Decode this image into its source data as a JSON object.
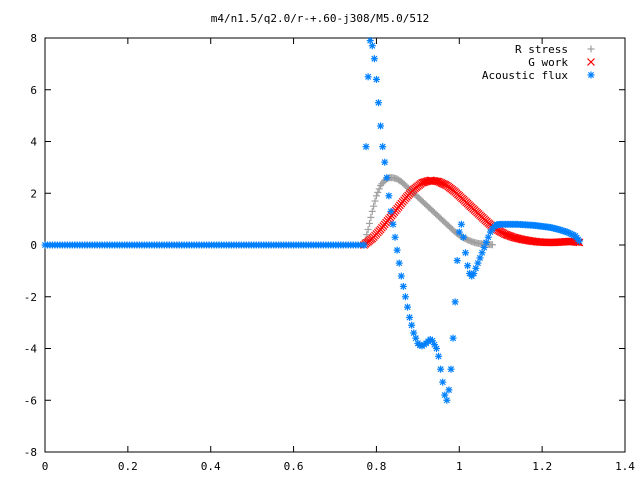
{
  "chart_data": {
    "type": "scatter",
    "title": "m4/n1.5/q2.0/r-+.60-j308/M5.0/512",
    "xlabel": "",
    "ylabel": "",
    "xlim": [
      0,
      1.4
    ],
    "ylim": [
      -8,
      8
    ],
    "x_ticks": [
      "0",
      "0.2",
      "0.4",
      "0.6",
      "0.8",
      "1",
      "1.2",
      "1.4"
    ],
    "y_ticks": [
      "-8",
      "-6",
      "-4",
      "-2",
      "0",
      "2",
      "4",
      "6",
      "8"
    ],
    "grid": false,
    "legend_position": "top-right",
    "series": [
      {
        "name": "R stress",
        "marker": "plus",
        "color": "#a0a0a0",
        "points": [
          [
            0.77,
            0.0
          ],
          [
            0.78,
            0.6
          ],
          [
            0.79,
            1.3
          ],
          [
            0.8,
            1.9
          ],
          [
            0.81,
            2.3
          ],
          [
            0.82,
            2.5
          ],
          [
            0.83,
            2.6
          ],
          [
            0.84,
            2.6
          ],
          [
            0.85,
            2.55
          ],
          [
            0.86,
            2.45
          ],
          [
            0.87,
            2.3
          ],
          [
            0.88,
            2.15
          ],
          [
            0.89,
            2.0
          ],
          [
            0.9,
            1.85
          ],
          [
            0.91,
            1.7
          ],
          [
            0.92,
            1.55
          ],
          [
            0.93,
            1.4
          ],
          [
            0.94,
            1.25
          ],
          [
            0.95,
            1.1
          ],
          [
            0.96,
            0.95
          ],
          [
            0.97,
            0.8
          ],
          [
            0.98,
            0.65
          ],
          [
            0.99,
            0.5
          ],
          [
            1.0,
            0.38
          ],
          [
            1.01,
            0.28
          ],
          [
            1.02,
            0.2
          ],
          [
            1.03,
            0.13
          ],
          [
            1.04,
            0.08
          ],
          [
            1.05,
            0.05
          ],
          [
            1.06,
            0.03
          ],
          [
            1.08,
            0.01
          ]
        ]
      },
      {
        "name": "G work",
        "marker": "cross",
        "color": "#ff0000",
        "points": [
          [
            0.77,
            0.0
          ],
          [
            0.79,
            0.25
          ],
          [
            0.81,
            0.6
          ],
          [
            0.83,
            1.0
          ],
          [
            0.85,
            1.4
          ],
          [
            0.87,
            1.8
          ],
          [
            0.89,
            2.15
          ],
          [
            0.91,
            2.4
          ],
          [
            0.93,
            2.5
          ],
          [
            0.95,
            2.45
          ],
          [
            0.97,
            2.3
          ],
          [
            0.99,
            2.05
          ],
          [
            1.01,
            1.75
          ],
          [
            1.03,
            1.45
          ],
          [
            1.05,
            1.15
          ],
          [
            1.07,
            0.85
          ],
          [
            1.09,
            0.6
          ],
          [
            1.11,
            0.42
          ],
          [
            1.13,
            0.3
          ],
          [
            1.15,
            0.22
          ],
          [
            1.17,
            0.16
          ],
          [
            1.19,
            0.12
          ],
          [
            1.21,
            0.1
          ],
          [
            1.23,
            0.1
          ],
          [
            1.25,
            0.12
          ],
          [
            1.27,
            0.14
          ],
          [
            1.29,
            0.1
          ]
        ]
      },
      {
        "name": "Acoustic flux",
        "marker": "star",
        "color": "#0080ff",
        "points": [
          [
            0.77,
            0.0
          ],
          [
            0.775,
            3.8
          ],
          [
            0.78,
            6.5
          ],
          [
            0.785,
            7.9
          ],
          [
            0.79,
            7.7
          ],
          [
            0.795,
            7.2
          ],
          [
            0.8,
            6.4
          ],
          [
            0.805,
            5.5
          ],
          [
            0.81,
            4.6
          ],
          [
            0.815,
            3.8
          ],
          [
            0.82,
            3.2
          ],
          [
            0.825,
            2.6
          ],
          [
            0.83,
            1.9
          ],
          [
            0.835,
            1.3
          ],
          [
            0.84,
            0.8
          ],
          [
            0.845,
            0.3
          ],
          [
            0.85,
            -0.2
          ],
          [
            0.855,
            -0.7
          ],
          [
            0.86,
            -1.2
          ],
          [
            0.865,
            -1.6
          ],
          [
            0.87,
            -2.0
          ],
          [
            0.875,
            -2.4
          ],
          [
            0.88,
            -2.8
          ],
          [
            0.885,
            -3.1
          ],
          [
            0.89,
            -3.4
          ],
          [
            0.895,
            -3.6
          ],
          [
            0.9,
            -3.8
          ],
          [
            0.905,
            -3.88
          ],
          [
            0.91,
            -3.9
          ],
          [
            0.915,
            -3.85
          ],
          [
            0.92,
            -3.8
          ],
          [
            0.925,
            -3.72
          ],
          [
            0.93,
            -3.65
          ],
          [
            0.935,
            -3.7
          ],
          [
            0.94,
            -3.85
          ],
          [
            0.945,
            -4.0
          ],
          [
            0.95,
            -4.3
          ],
          [
            0.955,
            -4.8
          ],
          [
            0.96,
            -5.3
          ],
          [
            0.965,
            -5.8
          ],
          [
            0.97,
            -6.0
          ],
          [
            0.975,
            -5.6
          ],
          [
            0.98,
            -4.8
          ],
          [
            0.985,
            -3.6
          ],
          [
            0.99,
            -2.2
          ],
          [
            0.995,
            -0.6
          ],
          [
            1.0,
            0.5
          ],
          [
            1.005,
            0.8
          ],
          [
            1.01,
            0.3
          ],
          [
            1.015,
            -0.3
          ],
          [
            1.02,
            -0.8
          ],
          [
            1.025,
            -1.1
          ],
          [
            1.03,
            -1.2
          ],
          [
            1.035,
            -1.1
          ],
          [
            1.04,
            -0.9
          ],
          [
            1.045,
            -0.7
          ],
          [
            1.05,
            -0.5
          ],
          [
            1.055,
            -0.3
          ],
          [
            1.06,
            -0.1
          ],
          [
            1.065,
            0.1
          ],
          [
            1.07,
            0.3
          ],
          [
            1.075,
            0.5
          ],
          [
            1.08,
            0.62
          ],
          [
            1.085,
            0.72
          ],
          [
            1.09,
            0.78
          ],
          [
            1.1,
            0.8
          ],
          [
            1.12,
            0.8
          ],
          [
            1.14,
            0.8
          ],
          [
            1.16,
            0.78
          ],
          [
            1.18,
            0.76
          ],
          [
            1.2,
            0.72
          ],
          [
            1.22,
            0.68
          ],
          [
            1.24,
            0.6
          ],
          [
            1.26,
            0.5
          ],
          [
            1.28,
            0.35
          ],
          [
            1.29,
            0.15
          ]
        ]
      }
    ]
  }
}
